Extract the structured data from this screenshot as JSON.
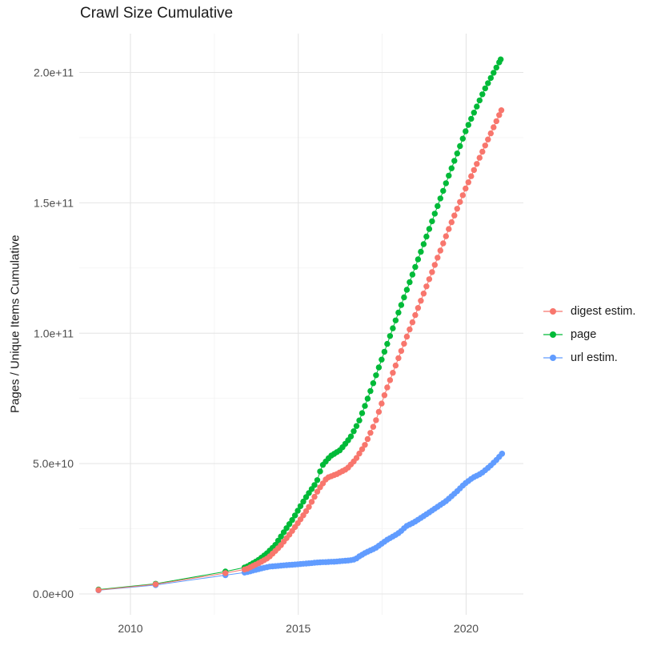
{
  "title": "Crawl Size Cumulative",
  "chart_data": {
    "type": "scatter",
    "title": "Crawl Size Cumulative",
    "xlabel": "",
    "ylabel": "Pages / Unique Items Cumulative",
    "legend_position": "right",
    "grid": true,
    "xlim": [
      2008.5,
      2021.7
    ],
    "ylim": [
      0,
      216000000000.0
    ],
    "x_ticks": [
      {
        "value": 2010,
        "label": "2010"
      },
      {
        "value": 2015,
        "label": "2015"
      },
      {
        "value": 2020,
        "label": "2020"
      }
    ],
    "x_minor": [
      2012.5,
      2017.5
    ],
    "y_ticks": [
      {
        "value_e9": 0,
        "label": "0.0e+00"
      },
      {
        "value_e9": 50,
        "label": "5.0e+10"
      },
      {
        "value_e9": 100,
        "label": "1.0e+11"
      },
      {
        "value_e9": 150,
        "label": "1.5e+11"
      },
      {
        "value_e9": 200,
        "label": "2.0e+11"
      }
    ],
    "y_minor_e9": [
      25,
      75,
      125,
      175
    ],
    "style": {
      "background": "#FFFFFF",
      "grid_major_color": "#E4E4E4",
      "grid_minor_color": "#F0F0F0",
      "tick_label_color": "#4D4D4D",
      "text_color": "#1A1A1A"
    },
    "sampling_note": "sparse yearly crawls before 2013.4, monthly crawl points afterwards; values in billions (1e9) of pages/items",
    "series": [
      {
        "name": "digest estim.",
        "color": "#F8766D",
        "points_year_billion": [
          [
            2009.05,
            1.5
          ],
          [
            2010.75,
            3.7
          ],
          [
            2012.83,
            8.0
          ],
          [
            2013.45,
            9.5
          ],
          [
            2013.85,
            12.0
          ],
          [
            2014.1,
            13.8
          ],
          [
            2014.45,
            18.2
          ],
          [
            2014.75,
            23.0
          ],
          [
            2015.05,
            28.3
          ],
          [
            2015.3,
            33.0
          ],
          [
            2015.6,
            40.0
          ],
          [
            2015.85,
            44.5
          ],
          [
            2016.15,
            46.0
          ],
          [
            2016.45,
            48.0
          ],
          [
            2016.7,
            51.5
          ],
          [
            2017.0,
            57.5
          ],
          [
            2017.3,
            66.0
          ],
          [
            2017.6,
            77.5
          ],
          [
            2018.0,
            91.0
          ],
          [
            2018.5,
            107.5
          ],
          [
            2019.0,
            124.0
          ],
          [
            2019.5,
            140.5
          ],
          [
            2020.0,
            156.0
          ],
          [
            2020.55,
            171.5
          ],
          [
            2021.05,
            185.5
          ]
        ]
      },
      {
        "name": "page",
        "color": "#00BA38",
        "points_year_billion": [
          [
            2009.05,
            1.7
          ],
          [
            2010.75,
            3.9
          ],
          [
            2012.83,
            8.6
          ],
          [
            2013.45,
            10.3
          ],
          [
            2013.8,
            12.9
          ],
          [
            2014.05,
            15.4
          ],
          [
            2014.3,
            18.5
          ],
          [
            2014.6,
            24.3
          ],
          [
            2014.85,
            29.0
          ],
          [
            2015.0,
            32.3
          ],
          [
            2015.25,
            37.5
          ],
          [
            2015.55,
            43.0
          ],
          [
            2015.7,
            49.0
          ],
          [
            2015.95,
            52.8
          ],
          [
            2016.25,
            55.2
          ],
          [
            2016.55,
            60.0
          ],
          [
            2016.8,
            66.0
          ],
          [
            2017.1,
            76.0
          ],
          [
            2017.5,
            90.5
          ],
          [
            2018.0,
            108.5
          ],
          [
            2018.5,
            126.0
          ],
          [
            2019.0,
            143.5
          ],
          [
            2019.5,
            161.0
          ],
          [
            2020.0,
            178.0
          ],
          [
            2020.55,
            193.5
          ],
          [
            2021.03,
            205.0
          ]
        ]
      },
      {
        "name": "url estim.",
        "color": "#619CFF",
        "points_year_billion": [
          [
            2009.05,
            1.4
          ],
          [
            2010.75,
            3.4
          ],
          [
            2012.83,
            7.2
          ],
          [
            2013.45,
            8.3
          ],
          [
            2013.9,
            9.8
          ],
          [
            2014.15,
            10.5
          ],
          [
            2014.6,
            11.0
          ],
          [
            2015.1,
            11.5
          ],
          [
            2015.6,
            12.1
          ],
          [
            2016.1,
            12.4
          ],
          [
            2016.55,
            12.9
          ],
          [
            2016.7,
            13.3
          ],
          [
            2016.8,
            14.3
          ],
          [
            2017.0,
            15.8
          ],
          [
            2017.3,
            17.6
          ],
          [
            2017.65,
            20.8
          ],
          [
            2017.95,
            23.0
          ],
          [
            2018.1,
            24.5
          ],
          [
            2018.2,
            25.9
          ],
          [
            2018.45,
            27.5
          ],
          [
            2018.75,
            30.0
          ],
          [
            2019.1,
            33.0
          ],
          [
            2019.4,
            35.6
          ],
          [
            2019.7,
            39.0
          ],
          [
            2019.95,
            42.2
          ],
          [
            2020.2,
            44.6
          ],
          [
            2020.45,
            46.2
          ],
          [
            2020.7,
            48.9
          ],
          [
            2020.9,
            51.4
          ],
          [
            2021.07,
            53.8
          ]
        ]
      }
    ]
  }
}
